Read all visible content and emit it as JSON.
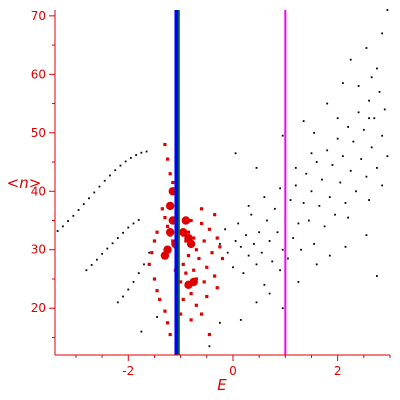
{
  "chart_data": {
    "type": "scatter",
    "xlabel": "E",
    "ylabel": "<n>",
    "xlim": [
      -3.4,
      3.0
    ],
    "ylim": [
      12,
      71
    ],
    "xticks": [
      "-2",
      "0",
      "2"
    ],
    "yticks": [
      "20",
      "30",
      "40",
      "50",
      "60",
      "70"
    ],
    "grid": false,
    "legend": "none",
    "colors": {
      "axis": "#e00000",
      "black_points": "#000000",
      "red_points": "#e00000",
      "blue_line": "#0000ff",
      "green_line": "#008000",
      "magenta_line": "#ff00ff"
    },
    "vertical_lines": [
      {
        "x": -1.07,
        "color": "#0000ff",
        "width": "thick"
      },
      {
        "x": -1.03,
        "color": "#008000",
        "width": "thin"
      },
      {
        "x": 1.0,
        "color": "#ff00ff",
        "width": "medium"
      }
    ],
    "series": [
      {
        "marker": "black-dot",
        "points": [
          [
            -3.35,
            33.2
          ],
          [
            -3.25,
            34.0
          ],
          [
            -3.15,
            34.9
          ],
          [
            -3.05,
            35.8
          ],
          [
            -2.95,
            36.8
          ],
          [
            -2.85,
            37.8
          ],
          [
            -2.75,
            38.8
          ],
          [
            -2.65,
            39.8
          ],
          [
            -2.55,
            40.8
          ],
          [
            -2.45,
            41.8
          ],
          [
            -2.35,
            42.7
          ],
          [
            -2.25,
            43.6
          ],
          [
            -2.15,
            44.4
          ],
          [
            -2.05,
            45.1
          ],
          [
            -1.95,
            45.7
          ],
          [
            -1.85,
            46.2
          ],
          [
            -1.75,
            46.6
          ],
          [
            -1.65,
            46.8
          ],
          [
            -2.8,
            26.5
          ],
          [
            -2.7,
            27.4
          ],
          [
            -2.6,
            28.3
          ],
          [
            -2.5,
            29.3
          ],
          [
            -2.4,
            30.2
          ],
          [
            -2.3,
            31.1
          ],
          [
            -2.2,
            32.0
          ],
          [
            -2.1,
            32.9
          ],
          [
            -2.0,
            33.8
          ],
          [
            -1.9,
            34.5
          ],
          [
            -1.8,
            35.1
          ],
          [
            -2.2,
            21.0
          ],
          [
            -2.1,
            22.0
          ],
          [
            -2.0,
            23.2
          ],
          [
            -1.9,
            24.5
          ],
          [
            -1.8,
            26.0
          ],
          [
            -1.7,
            27.5
          ],
          [
            -1.6,
            29.5
          ],
          [
            -1.75,
            16.0
          ],
          [
            -1.45,
            18.5
          ],
          [
            -0.25,
            17.5
          ],
          [
            -0.45,
            13.5
          ],
          [
            0.05,
            46.5
          ],
          [
            0.45,
            44.0
          ],
          [
            0.95,
            49.5
          ],
          [
            1.35,
            52.0
          ],
          [
            1.8,
            55.0
          ],
          [
            2.1,
            58.5
          ],
          [
            2.6,
            52.5
          ],
          [
            2.95,
            71.0
          ],
          [
            -0.25,
            31.0
          ],
          [
            -0.15,
            33.5
          ],
          [
            -0.1,
            29.5
          ],
          [
            0.0,
            27.0
          ],
          [
            0.05,
            31.5
          ],
          [
            0.1,
            34.5
          ],
          [
            0.15,
            30.5
          ],
          [
            0.2,
            26.0
          ],
          [
            0.25,
            32.5
          ],
          [
            0.3,
            29.0
          ],
          [
            0.35,
            36.0
          ],
          [
            0.4,
            31.0
          ],
          [
            0.45,
            27.5
          ],
          [
            0.5,
            33.0
          ],
          [
            0.55,
            29.5
          ],
          [
            0.6,
            24.0
          ],
          [
            0.65,
            35.0
          ],
          [
            0.7,
            31.5
          ],
          [
            0.75,
            28.0
          ],
          [
            0.8,
            37.0
          ],
          [
            0.85,
            33.0
          ],
          [
            0.9,
            26.5
          ],
          [
            0.95,
            30.0
          ],
          [
            1.0,
            35.5
          ],
          [
            1.05,
            28.5
          ],
          [
            1.1,
            38.5
          ],
          [
            1.15,
            32.0
          ],
          [
            1.2,
            41.0
          ],
          [
            1.25,
            34.5
          ],
          [
            1.3,
            30.0
          ],
          [
            1.35,
            38.0
          ],
          [
            1.4,
            43.0
          ],
          [
            1.45,
            35.0
          ],
          [
            1.5,
            40.0
          ],
          [
            1.55,
            31.0
          ],
          [
            1.6,
            45.0
          ],
          [
            1.65,
            37.5
          ],
          [
            1.7,
            42.0
          ],
          [
            1.75,
            34.0
          ],
          [
            1.8,
            47.0
          ],
          [
            1.85,
            39.0
          ],
          [
            1.9,
            44.5
          ],
          [
            1.95,
            36.0
          ],
          [
            2.0,
            49.0
          ],
          [
            2.05,
            41.5
          ],
          [
            2.1,
            46.0
          ],
          [
            2.15,
            38.0
          ],
          [
            2.2,
            51.0
          ],
          [
            2.25,
            43.5
          ],
          [
            2.3,
            48.5
          ],
          [
            2.35,
            40.0
          ],
          [
            2.4,
            53.5
          ],
          [
            2.45,
            45.5
          ],
          [
            2.5,
            50.5
          ],
          [
            2.55,
            42.5
          ],
          [
            2.6,
            55.5
          ],
          [
            2.65,
            47.5
          ],
          [
            2.7,
            52.5
          ],
          [
            2.75,
            44.0
          ],
          [
            2.8,
            57.0
          ],
          [
            2.85,
            49.5
          ],
          [
            2.9,
            54.0
          ],
          [
            2.95,
            46.0
          ],
          [
            2.25,
            62.5
          ],
          [
            2.55,
            64.5
          ],
          [
            2.75,
            61.0
          ],
          [
            2.85,
            67.0
          ],
          [
            2.4,
            58.0
          ],
          [
            2.65,
            59.5
          ],
          [
            2.0,
            52.5
          ],
          [
            1.55,
            50.0
          ],
          [
            0.3,
            37.5
          ],
          [
            0.6,
            39.0
          ],
          [
            0.9,
            40.5
          ],
          [
            1.2,
            44.0
          ],
          [
            1.5,
            46.5
          ],
          [
            2.2,
            35.5
          ],
          [
            2.6,
            38.5
          ],
          [
            2.85,
            41.0
          ],
          [
            2.15,
            30.5
          ],
          [
            1.85,
            29.0
          ],
          [
            2.55,
            32.5
          ],
          [
            2.75,
            25.5
          ],
          [
            0.7,
            22.5
          ],
          [
            0.45,
            21.0
          ],
          [
            1.25,
            24.5
          ],
          [
            0.15,
            18.0
          ],
          [
            0.95,
            20.0
          ],
          [
            1.6,
            27.5
          ]
        ]
      },
      {
        "marker": "red-dot",
        "points": [
          [
            -1.3,
            48.0
          ],
          [
            -1.25,
            45.5
          ],
          [
            -1.2,
            43.0
          ],
          [
            -1.15,
            41.5
          ],
          [
            -1.35,
            37.0
          ],
          [
            -1.3,
            35.5
          ],
          [
            -1.25,
            34.0
          ],
          [
            -1.2,
            32.5
          ],
          [
            -1.15,
            31.5
          ],
          [
            -1.1,
            30.5
          ],
          [
            -1.45,
            33.0
          ],
          [
            -1.5,
            31.5
          ],
          [
            -1.55,
            29.5
          ],
          [
            -1.6,
            27.5
          ],
          [
            -1.5,
            25.0
          ],
          [
            -1.45,
            23.0
          ],
          [
            -1.4,
            21.5
          ],
          [
            -1.3,
            19.5
          ],
          [
            -1.25,
            17.5
          ],
          [
            -1.2,
            15.5
          ],
          [
            -0.95,
            32.5
          ],
          [
            -0.9,
            31.5
          ],
          [
            -0.85,
            33.0
          ],
          [
            -0.8,
            35.0
          ],
          [
            -0.75,
            32.0
          ],
          [
            -0.7,
            30.0
          ],
          [
            -0.65,
            28.5
          ],
          [
            -0.6,
            34.5
          ],
          [
            -0.55,
            31.5
          ],
          [
            -0.5,
            27.0
          ],
          [
            -0.45,
            33.5
          ],
          [
            -0.4,
            29.5
          ],
          [
            -0.35,
            25.5
          ],
          [
            -0.3,
            23.5
          ],
          [
            -0.85,
            24.0
          ],
          [
            -0.8,
            22.5
          ],
          [
            -0.75,
            26.5
          ],
          [
            -0.7,
            20.5
          ],
          [
            -0.6,
            19.0
          ],
          [
            -0.55,
            24.5
          ],
          [
            -0.5,
            22.0
          ],
          [
            -0.95,
            21.5
          ],
          [
            -0.9,
            26.0
          ],
          [
            -0.45,
            15.5
          ],
          [
            -0.3,
            32.0
          ],
          [
            -0.25,
            30.5
          ],
          [
            -0.2,
            28.5
          ],
          [
            -0.35,
            36.0
          ],
          [
            -0.6,
            37.0
          ],
          [
            -0.7,
            25.0
          ],
          [
            -0.85,
            29.0
          ],
          [
            -0.95,
            27.5
          ],
          [
            -1.0,
            24.5
          ],
          [
            -1.1,
            26.5
          ],
          [
            -0.8,
            18.0
          ],
          [
            -1.0,
            19.0
          ],
          [
            -1.05,
            21.0
          ]
        ]
      },
      {
        "marker": "red-large",
        "points": [
          [
            -1.2,
            33.0
          ],
          [
            -1.15,
            35.0
          ],
          [
            -1.25,
            30.0
          ],
          [
            -1.3,
            29.0
          ],
          [
            -1.1,
            31.0
          ],
          [
            -0.95,
            33.0
          ],
          [
            -0.9,
            35.0
          ],
          [
            -0.85,
            32.0
          ],
          [
            -0.8,
            31.0
          ],
          [
            -0.75,
            24.5
          ],
          [
            -0.85,
            24.0
          ],
          [
            -1.2,
            37.5
          ],
          [
            -1.15,
            40.0
          ]
        ]
      }
    ]
  }
}
